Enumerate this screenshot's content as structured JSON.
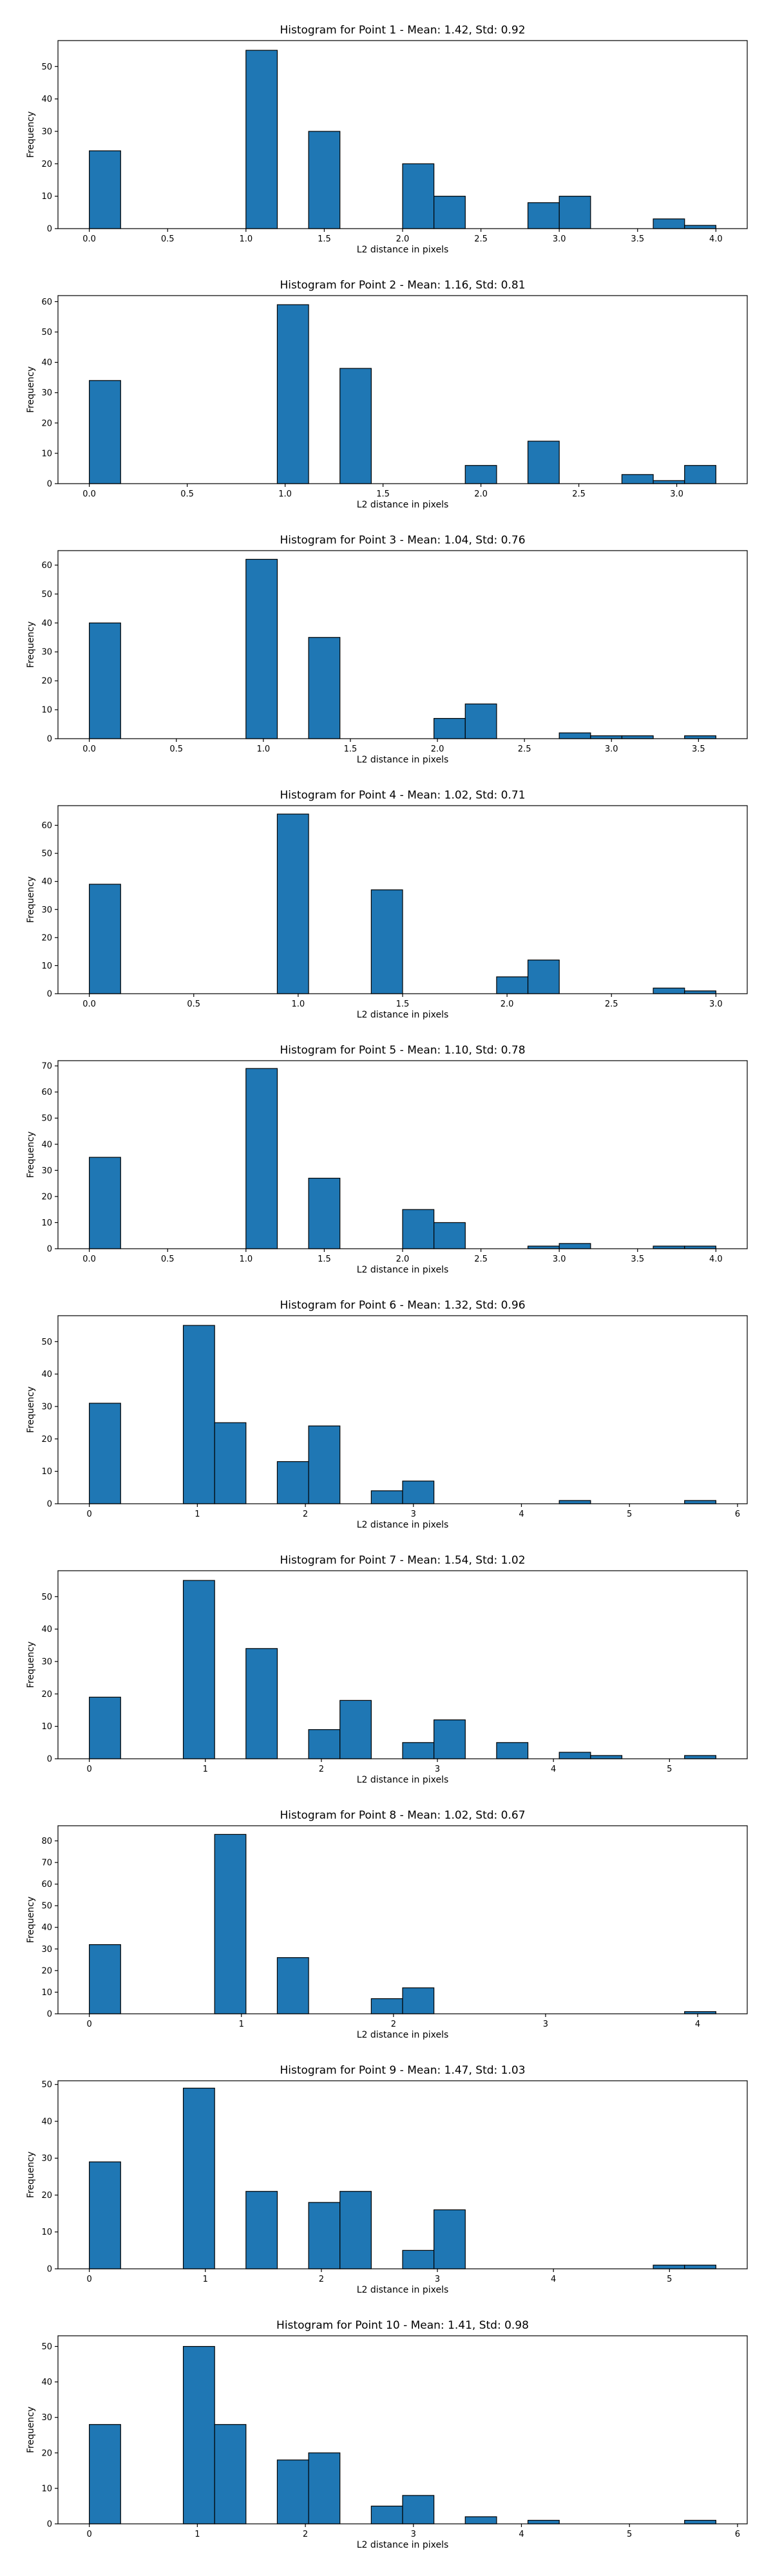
{
  "chart_data": [
    {
      "type": "bar",
      "title": "Histogram for Point 1 - Mean: 1.42, Std: 0.92",
      "xlabel": "L2 distance in pixels",
      "ylabel": "Frequency",
      "xlim": [
        -0.2,
        4.2
      ],
      "ylim": [
        0,
        58
      ],
      "xticks": [
        0.0,
        0.5,
        1.0,
        1.5,
        2.0,
        2.5,
        3.0,
        3.5,
        4.0
      ],
      "xtick_labels": [
        "0.0",
        "0.5",
        "1.0",
        "1.5",
        "2.0",
        "2.5",
        "3.0",
        "3.5",
        "4.0"
      ],
      "yticks": [
        0,
        10,
        20,
        30,
        40,
        50
      ],
      "bin_width": 0.2,
      "bins": [
        {
          "x0": 0.0,
          "value": 24
        },
        {
          "x0": 1.0,
          "value": 55
        },
        {
          "x0": 1.4,
          "value": 30
        },
        {
          "x0": 2.0,
          "value": 20
        },
        {
          "x0": 2.2,
          "value": 10
        },
        {
          "x0": 2.8,
          "value": 8
        },
        {
          "x0": 3.0,
          "value": 10
        },
        {
          "x0": 3.6,
          "value": 3
        },
        {
          "x0": 3.8,
          "value": 1
        }
      ]
    },
    {
      "type": "bar",
      "title": "Histogram for Point 2 - Mean: 1.16, Std: 0.81",
      "xlabel": "L2 distance in pixels",
      "ylabel": "Frequency",
      "xlim": [
        -0.16,
        3.36
      ],
      "ylim": [
        0,
        62
      ],
      "xticks": [
        0.0,
        0.5,
        1.0,
        1.5,
        2.0,
        2.5,
        3.0
      ],
      "xtick_labels": [
        "0.0",
        "0.5",
        "1.0",
        "1.5",
        "2.0",
        "2.5",
        "3.0"
      ],
      "yticks": [
        0,
        10,
        20,
        30,
        40,
        50,
        60
      ],
      "bin_width": 0.16,
      "bins": [
        {
          "x0": 0.0,
          "value": 34
        },
        {
          "x0": 0.96,
          "value": 59
        },
        {
          "x0": 1.28,
          "value": 38
        },
        {
          "x0": 1.92,
          "value": 6
        },
        {
          "x0": 2.24,
          "value": 14
        },
        {
          "x0": 2.72,
          "value": 3
        },
        {
          "x0": 2.88,
          "value": 1
        },
        {
          "x0": 3.04,
          "value": 6
        }
      ]
    },
    {
      "type": "bar",
      "title": "Histogram for Point 3 - Mean: 1.04, Std: 0.76",
      "xlabel": "L2 distance in pixels",
      "ylabel": "Frequency",
      "xlim": [
        -0.18,
        3.78
      ],
      "ylim": [
        0,
        65
      ],
      "xticks": [
        0.0,
        0.5,
        1.0,
        1.5,
        2.0,
        2.5,
        3.0,
        3.5
      ],
      "xtick_labels": [
        "0.0",
        "0.5",
        "1.0",
        "1.5",
        "2.0",
        "2.5",
        "3.0",
        "3.5"
      ],
      "yticks": [
        0,
        10,
        20,
        30,
        40,
        50,
        60
      ],
      "bin_width": 0.18,
      "bins": [
        {
          "x0": 0.0,
          "value": 40
        },
        {
          "x0": 0.9,
          "value": 62
        },
        {
          "x0": 1.26,
          "value": 35
        },
        {
          "x0": 1.98,
          "value": 7
        },
        {
          "x0": 2.16,
          "value": 12
        },
        {
          "x0": 2.7,
          "value": 2
        },
        {
          "x0": 2.88,
          "value": 1
        },
        {
          "x0": 3.06,
          "value": 1
        },
        {
          "x0": 3.42,
          "value": 1
        }
      ]
    },
    {
      "type": "bar",
      "title": "Histogram for Point 4 - Mean: 1.02, Std: 0.71",
      "xlabel": "L2 distance in pixels",
      "ylabel": "Frequency",
      "xlim": [
        -0.15,
        3.15
      ],
      "ylim": [
        0,
        67
      ],
      "xticks": [
        0.0,
        0.5,
        1.0,
        1.5,
        2.0,
        2.5,
        3.0
      ],
      "xtick_labels": [
        "0.0",
        "0.5",
        "1.0",
        "1.5",
        "2.0",
        "2.5",
        "3.0"
      ],
      "yticks": [
        0,
        10,
        20,
        30,
        40,
        50,
        60
      ],
      "bin_width": 0.15,
      "bins": [
        {
          "x0": 0.0,
          "value": 39
        },
        {
          "x0": 0.9,
          "value": 64
        },
        {
          "x0": 1.35,
          "value": 37
        },
        {
          "x0": 1.95,
          "value": 6
        },
        {
          "x0": 2.1,
          "value": 12
        },
        {
          "x0": 2.7,
          "value": 2
        },
        {
          "x0": 2.85,
          "value": 1
        }
      ]
    },
    {
      "type": "bar",
      "title": "Histogram for Point 5 - Mean: 1.10, Std: 0.78",
      "xlabel": "L2 distance in pixels",
      "ylabel": "Frequency",
      "xlim": [
        -0.2,
        4.2
      ],
      "ylim": [
        0,
        72
      ],
      "xticks": [
        0.0,
        0.5,
        1.0,
        1.5,
        2.0,
        2.5,
        3.0,
        3.5,
        4.0
      ],
      "xtick_labels": [
        "0.0",
        "0.5",
        "1.0",
        "1.5",
        "2.0",
        "2.5",
        "3.0",
        "3.5",
        "4.0"
      ],
      "yticks": [
        0,
        10,
        20,
        30,
        40,
        50,
        60,
        70
      ],
      "bin_width": 0.2,
      "bins": [
        {
          "x0": 0.0,
          "value": 35
        },
        {
          "x0": 1.0,
          "value": 69
        },
        {
          "x0": 1.4,
          "value": 27
        },
        {
          "x0": 2.0,
          "value": 15
        },
        {
          "x0": 2.2,
          "value": 10
        },
        {
          "x0": 2.8,
          "value": 1
        },
        {
          "x0": 3.0,
          "value": 2
        },
        {
          "x0": 3.6,
          "value": 1
        },
        {
          "x0": 3.8,
          "value": 1
        }
      ]
    },
    {
      "type": "bar",
      "title": "Histogram for Point 6 - Mean: 1.32, Std: 0.96",
      "xlabel": "L2 distance in pixels",
      "ylabel": "Frequency",
      "xlim": [
        -0.29,
        6.09
      ],
      "ylim": [
        0,
        58
      ],
      "xticks": [
        0,
        1,
        2,
        3,
        4,
        5,
        6
      ],
      "xtick_labels": [
        "0",
        "1",
        "2",
        "3",
        "4",
        "5",
        "6"
      ],
      "yticks": [
        0,
        10,
        20,
        30,
        40,
        50
      ],
      "bin_width": 0.29,
      "bins": [
        {
          "x0": 0.0,
          "value": 31
        },
        {
          "x0": 0.87,
          "value": 55
        },
        {
          "x0": 1.16,
          "value": 25
        },
        {
          "x0": 1.74,
          "value": 13
        },
        {
          "x0": 2.03,
          "value": 24
        },
        {
          "x0": 2.61,
          "value": 4
        },
        {
          "x0": 2.9,
          "value": 7
        },
        {
          "x0": 4.35,
          "value": 1
        },
        {
          "x0": 5.51,
          "value": 1
        }
      ]
    },
    {
      "type": "bar",
      "title": "Histogram for Point 7 - Mean: 1.54, Std: 1.02",
      "xlabel": "L2 distance in pixels",
      "ylabel": "Frequency",
      "xlim": [
        -0.27,
        5.67
      ],
      "ylim": [
        0,
        58
      ],
      "xticks": [
        0,
        1,
        2,
        3,
        4,
        5
      ],
      "xtick_labels": [
        "0",
        "1",
        "2",
        "3",
        "4",
        "5"
      ],
      "yticks": [
        0,
        10,
        20,
        30,
        40,
        50
      ],
      "bin_width": 0.27,
      "bins": [
        {
          "x0": 0.0,
          "value": 19
        },
        {
          "x0": 0.81,
          "value": 55
        },
        {
          "x0": 1.35,
          "value": 34
        },
        {
          "x0": 1.89,
          "value": 9
        },
        {
          "x0": 2.16,
          "value": 18
        },
        {
          "x0": 2.7,
          "value": 5
        },
        {
          "x0": 2.97,
          "value": 12
        },
        {
          "x0": 3.51,
          "value": 5
        },
        {
          "x0": 4.05,
          "value": 2
        },
        {
          "x0": 4.32,
          "value": 1
        },
        {
          "x0": 5.13,
          "value": 1
        }
      ]
    },
    {
      "type": "bar",
      "title": "Histogram for Point 8 - Mean: 1.02, Std: 0.67",
      "xlabel": "L2 distance in pixels",
      "ylabel": "Frequency",
      "xlim": [
        -0.206,
        4.326
      ],
      "ylim": [
        0,
        87
      ],
      "xticks": [
        0,
        1,
        2,
        3,
        4
      ],
      "xtick_labels": [
        "0",
        "1",
        "2",
        "3",
        "4"
      ],
      "yticks": [
        0,
        10,
        20,
        30,
        40,
        50,
        60,
        70,
        80
      ],
      "bin_width": 0.206,
      "bins": [
        {
          "x0": 0.0,
          "value": 32
        },
        {
          "x0": 0.824,
          "value": 83
        },
        {
          "x0": 1.236,
          "value": 26
        },
        {
          "x0": 1.854,
          "value": 7
        },
        {
          "x0": 2.06,
          "value": 12
        },
        {
          "x0": 3.914,
          "value": 1
        }
      ]
    },
    {
      "type": "bar",
      "title": "Histogram for Point 9 - Mean: 1.47, Std: 1.03",
      "xlabel": "L2 distance in pixels",
      "ylabel": "Frequency",
      "xlim": [
        -0.27,
        5.67
      ],
      "ylim": [
        0,
        51
      ],
      "xticks": [
        0,
        1,
        2,
        3,
        4,
        5
      ],
      "xtick_labels": [
        "0",
        "1",
        "2",
        "3",
        "4",
        "5"
      ],
      "yticks": [
        0,
        10,
        20,
        30,
        40,
        50
      ],
      "bin_width": 0.27,
      "bins": [
        {
          "x0": 0.0,
          "value": 29
        },
        {
          "x0": 0.81,
          "value": 49
        },
        {
          "x0": 1.35,
          "value": 21
        },
        {
          "x0": 1.89,
          "value": 18
        },
        {
          "x0": 2.16,
          "value": 21
        },
        {
          "x0": 2.7,
          "value": 5
        },
        {
          "x0": 2.97,
          "value": 16
        },
        {
          "x0": 4.86,
          "value": 1
        },
        {
          "x0": 5.13,
          "value": 1
        }
      ]
    },
    {
      "type": "bar",
      "title": "Histogram for Point 10 - Mean: 1.41, Std: 0.98",
      "xlabel": "L2 distance in pixels",
      "ylabel": "Frequency",
      "xlim": [
        -0.29,
        6.09
      ],
      "ylim": [
        0,
        53
      ],
      "xticks": [
        0,
        1,
        2,
        3,
        4,
        5,
        6
      ],
      "xtick_labels": [
        "0",
        "1",
        "2",
        "3",
        "4",
        "5",
        "6"
      ],
      "yticks": [
        0,
        10,
        20,
        30,
        40,
        50
      ],
      "bin_width": 0.29,
      "bins": [
        {
          "x0": 0.0,
          "value": 28
        },
        {
          "x0": 0.87,
          "value": 50
        },
        {
          "x0": 1.16,
          "value": 28
        },
        {
          "x0": 1.74,
          "value": 18
        },
        {
          "x0": 2.03,
          "value": 20
        },
        {
          "x0": 2.61,
          "value": 5
        },
        {
          "x0": 2.9,
          "value": 8
        },
        {
          "x0": 3.48,
          "value": 2
        },
        {
          "x0": 4.06,
          "value": 1
        },
        {
          "x0": 5.51,
          "value": 1
        }
      ]
    }
  ]
}
